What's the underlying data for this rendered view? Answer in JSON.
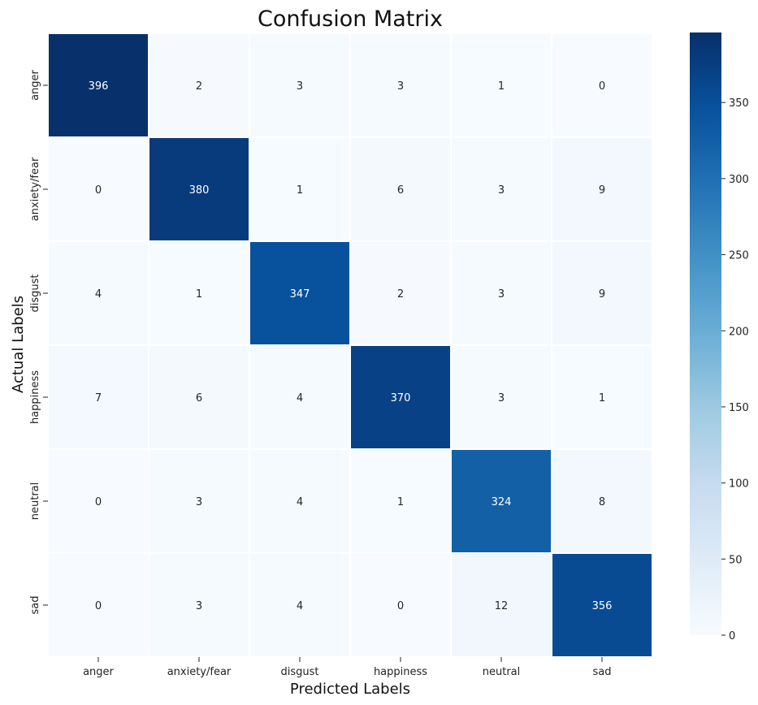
{
  "chart_data": {
    "type": "heatmap",
    "title": "Confusion Matrix",
    "xlabel": "Predicted Labels",
    "ylabel": "Actual Labels",
    "x_categories": [
      "anger",
      "anxiety/fear",
      "disgust",
      "happiness",
      "neutral",
      "sad"
    ],
    "y_categories": [
      "anger",
      "anxiety/fear",
      "disgust",
      "happiness",
      "neutral",
      "sad"
    ],
    "values": [
      [
        396,
        2,
        3,
        3,
        1,
        0
      ],
      [
        0,
        380,
        1,
        6,
        3,
        9
      ],
      [
        4,
        1,
        347,
        2,
        3,
        9
      ],
      [
        7,
        6,
        4,
        370,
        3,
        1
      ],
      [
        0,
        3,
        4,
        1,
        324,
        8
      ],
      [
        0,
        3,
        4,
        0,
        12,
        356
      ]
    ],
    "colorbar": {
      "range": [
        0,
        396
      ],
      "ticks": [
        0,
        50,
        100,
        150,
        200,
        250,
        300,
        350
      ]
    },
    "colormap": "Blues",
    "colors": [
      "#f7fbff",
      "#deebf7",
      "#c6dbef",
      "#9ecae1",
      "#6baed6",
      "#4292c6",
      "#2171b5",
      "#08519c",
      "#08306b"
    ]
  }
}
